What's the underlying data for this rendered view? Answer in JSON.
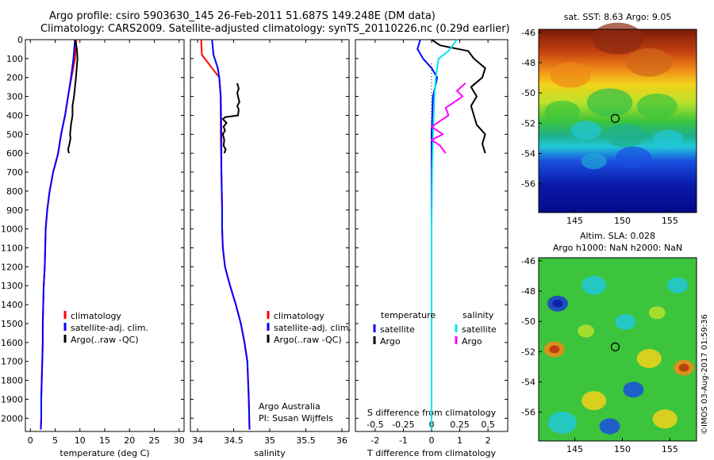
{
  "titles": {
    "line1": "Argo profile: csiro 5903630_145 26-Feb-2011 51.687S 149.248E (DM data)",
    "line2": "Climatology: CARS2009. Satellite-adjusted climatology: synTS_20110226.nc (0.29d earlier)"
  },
  "stamp": "©IMOS 03-Aug-2017 01:59:36",
  "colors": {
    "clim": "#ff0000",
    "sat": "#0000ff",
    "argo": "#000000",
    "sat_s": "#00e5ee",
    "argo_s": "#ff00ff",
    "dot": "#000000"
  },
  "chart_data": [
    {
      "type": "line",
      "id": "temperature",
      "xlabel": "temperature (deg C)",
      "ylabel": "",
      "xlim": [
        -1,
        31
      ],
      "ylim": [
        2070,
        0
      ],
      "xticks": [
        0,
        5,
        10,
        15,
        20,
        25,
        30
      ],
      "yticks": [
        0,
        100,
        200,
        300,
        400,
        500,
        600,
        700,
        800,
        900,
        1000,
        1100,
        1200,
        1300,
        1400,
        1500,
        1600,
        1700,
        1800,
        1900,
        2000
      ],
      "legend": [
        "climatology",
        "satellite-adj. clim.",
        "Argo(..raw -QC)"
      ],
      "series": [
        {
          "name": "climatology",
          "color": "clim",
          "x": [
            9.3,
            9.0,
            8.3,
            7.6,
            7.0,
            6.2,
            5.6,
            4.6,
            3.9,
            3.4,
            3.1,
            2.9,
            2.7,
            2.6,
            2.5,
            2.5,
            2.4,
            2.3,
            2.2,
            2.2,
            2.1
          ],
          "y": [
            0,
            100,
            200,
            300,
            400,
            500,
            600,
            700,
            800,
            900,
            1000,
            1200,
            1300,
            1400,
            1500,
            1600,
            1700,
            1800,
            1900,
            2000,
            2060
          ]
        },
        {
          "name": "satellite-adj. clim.",
          "color": "sat",
          "x": [
            9.0,
            8.7,
            8.2,
            7.6,
            7.0,
            6.2,
            5.6,
            4.6,
            3.9,
            3.4,
            3.1,
            2.9,
            2.7,
            2.6,
            2.5,
            2.5,
            2.4,
            2.3,
            2.2,
            2.2,
            2.1
          ],
          "y": [
            0,
            100,
            200,
            300,
            400,
            500,
            600,
            700,
            800,
            900,
            1000,
            1200,
            1300,
            1400,
            1500,
            1600,
            1700,
            1800,
            1900,
            2000,
            2060
          ]
        },
        {
          "name": "Argo(..raw -QC)",
          "color": "argo",
          "x": [
            9.0,
            9.4,
            9.5,
            9.2,
            8.8,
            8.5,
            8.5,
            8.2,
            8.0,
            8.1,
            7.9,
            7.6,
            7.8
          ],
          "y": [
            0,
            50,
            100,
            200,
            300,
            350,
            400,
            450,
            500,
            520,
            550,
            580,
            600
          ]
        }
      ]
    },
    {
      "type": "line",
      "id": "salinity",
      "xlabel": "salinity",
      "ylabel": "",
      "xlim": [
        33.9,
        36.1
      ],
      "ylim": [
        2070,
        0
      ],
      "xticks": [
        34,
        34.5,
        35,
        35.5,
        36
      ],
      "legend": [
        "climatology",
        "satellite-adj. clim.",
        "Argo(..raw -QC)"
      ],
      "annotations": [
        "Argo Australia",
        "PI: Susan Wijffels"
      ],
      "series": [
        {
          "name": "climatology",
          "color": "clim",
          "x": [
            34.05,
            34.06,
            34.2,
            34.3,
            34.32,
            34.32,
            34.33,
            34.34,
            34.34,
            34.35,
            34.38,
            34.45,
            34.53,
            34.6,
            34.65,
            34.69,
            34.71,
            34.72
          ],
          "y": [
            0,
            80,
            150,
            200,
            300,
            500,
            700,
            900,
            1000,
            1100,
            1200,
            1300,
            1400,
            1500,
            1600,
            1700,
            1900,
            2060
          ]
        },
        {
          "name": "satellite-adj. clim.",
          "color": "sat",
          "x": [
            34.2,
            34.22,
            34.28,
            34.3,
            34.32,
            34.33,
            34.33,
            34.34,
            34.34,
            34.35,
            34.38,
            34.45,
            34.53,
            34.6,
            34.65,
            34.69,
            34.71,
            34.72
          ],
          "y": [
            0,
            80,
            150,
            200,
            300,
            500,
            700,
            900,
            1000,
            1100,
            1200,
            1300,
            1400,
            1500,
            1600,
            1700,
            1900,
            2060
          ]
        },
        {
          "name": "Argo(..raw -QC)",
          "color": "argo",
          "x": [
            34.55,
            34.57,
            34.55,
            34.56,
            34.58,
            34.55,
            34.57,
            34.56,
            34.38,
            34.35,
            34.4,
            34.36,
            34.38,
            34.35,
            34.37,
            34.36,
            34.39,
            34.37
          ],
          "y": [
            230,
            260,
            280,
            300,
            330,
            350,
            370,
            400,
            410,
            420,
            440,
            460,
            480,
            500,
            530,
            560,
            580,
            600
          ]
        }
      ]
    },
    {
      "type": "line",
      "id": "difference",
      "xlabel": "T difference from climatology",
      "ylabel": "",
      "title": "S difference from climatology",
      "xlim": [
        -2.7,
        2.7
      ],
      "ylim": [
        2070,
        0
      ],
      "xticks": [
        -2,
        -1,
        0,
        1,
        2
      ],
      "xticks_top": [
        -0.5,
        -0.25,
        0,
        0.25,
        0.5
      ],
      "legend": [
        "temperature",
        "satellite",
        "Argo",
        "salinity",
        "satellite",
        "Argo"
      ],
      "series": [
        {
          "name": "satellite",
          "color": "sat",
          "x": [
            -0.4,
            -0.5,
            -0.3,
            0.0,
            0.2,
            0.05,
            0.0,
            0.0,
            0.0,
            0.0,
            0.0
          ],
          "y": [
            0,
            50,
            100,
            150,
            200,
            300,
            500,
            700,
            1000,
            1500,
            2060
          ]
        },
        {
          "name": "Argo",
          "color": "argo",
          "x": [
            0.0,
            0.3,
            1.3,
            1.5,
            1.9,
            1.8,
            1.4,
            1.6,
            1.4,
            1.5,
            1.6,
            1.9,
            1.8,
            1.9
          ],
          "y": [
            0,
            30,
            60,
            100,
            150,
            200,
            250,
            300,
            350,
            400,
            450,
            500,
            550,
            600
          ]
        },
        {
          "name": "satellite",
          "color": "sat_s",
          "x": [
            0.9,
            0.6,
            0.25,
            0.15,
            0.1,
            0.05,
            0.02,
            0.0,
            0.0,
            0.0
          ],
          "y": [
            0,
            60,
            100,
            200,
            300,
            500,
            700,
            1000,
            1500,
            2060
          ]
        },
        {
          "name": "Argo",
          "color": "argo_s",
          "x": [
            1.2,
            0.9,
            1.1,
            0.8,
            0.5,
            0.6,
            0.3,
            0.0,
            0.4,
            0.0,
            0.3,
            0.5
          ],
          "y": [
            230,
            270,
            300,
            330,
            360,
            400,
            430,
            460,
            500,
            530,
            560,
            600
          ]
        }
      ]
    },
    {
      "type": "heatmap",
      "id": "sst-map",
      "title": "sat. SST: 8.63 Argo: 9.05",
      "xlim": [
        141.2,
        157.8
      ],
      "ylim": [
        -57.9,
        -45.8
      ],
      "xticks": [
        145,
        150,
        155
      ],
      "yticks": [
        -46,
        -48,
        -50,
        -52,
        -54,
        -56
      ],
      "marker": {
        "lon": 149.248,
        "lat": -51.687
      }
    },
    {
      "type": "heatmap",
      "id": "sla-map",
      "title": "Altim. SLA: 0.028",
      "subtitle": "Argo h1000: NaN h2000: NaN",
      "xlim": [
        141.2,
        157.8
      ],
      "ylim": [
        -57.9,
        -45.8
      ],
      "xticks": [
        145,
        150,
        155
      ],
      "yticks": [
        -46,
        -48,
        -50,
        -52,
        -54,
        -56
      ],
      "marker": {
        "lon": 149.248,
        "lat": -51.687
      }
    }
  ]
}
